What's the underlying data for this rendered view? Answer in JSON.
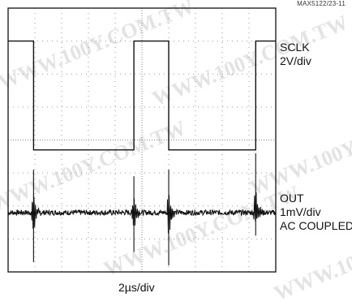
{
  "figure_id": "MAX5122/23-11",
  "watermark": "WWW.100Y.COM.TW",
  "chart_data": {
    "type": "line",
    "title": "",
    "xlabel": "2µs/div",
    "ylabel": "",
    "grid": true,
    "divisions": {
      "x": 10,
      "y": 8
    },
    "x_unit": "µs",
    "xlim": [
      0,
      20
    ],
    "series": [
      {
        "name": "SCLK",
        "label_lines": [
          "SCLK",
          "2V/div"
        ],
        "volts_per_div": 2,
        "unit": "V",
        "x": [
          0,
          1.9,
          1.9,
          9.4,
          9.4,
          12.0,
          12.0,
          18.5,
          18.5,
          20
        ],
        "y": [
          0.75,
          0.75,
          -2.55,
          -2.55,
          0.75,
          0.75,
          -2.55,
          -2.55,
          0.75,
          0.75
        ]
      },
      {
        "name": "OUT",
        "label_lines": [
          "OUT",
          "1mV/div",
          "AC COUPLED"
        ],
        "volts_per_div": 0.001,
        "unit": "mV",
        "baseline": 0,
        "glitches": [
          {
            "x": 1.9,
            "up": 1.3,
            "down": -1.5
          },
          {
            "x": 9.4,
            "up": 1.1,
            "down": -1.2
          },
          {
            "x": 12.0,
            "up": 1.3,
            "down": -1.6
          },
          {
            "x": 18.5,
            "up": 1.8,
            "down": -0.7
          }
        ]
      }
    ]
  }
}
